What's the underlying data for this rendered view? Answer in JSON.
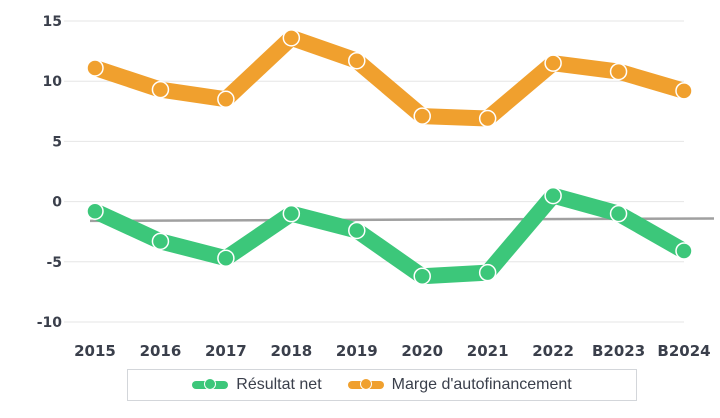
{
  "chart_data": {
    "type": "line",
    "title": "",
    "xlabel": "",
    "ylabel": "",
    "categories": [
      "2015",
      "2016",
      "2017",
      "2018",
      "2019",
      "2020",
      "2021",
      "2022",
      "B2023",
      "B2024"
    ],
    "ylim": [
      -10,
      15
    ],
    "yticks": [
      "15",
      "10",
      "5",
      "0",
      "-5",
      "-10"
    ],
    "ytick_values": [
      15,
      10,
      5,
      0,
      -5,
      -10
    ],
    "grid": true,
    "legend_position": "bottom",
    "series": [
      {
        "name": "Résultat net",
        "color": "#3cc77a",
        "values": [
          -0.8,
          -3.3,
          -4.7,
          -1.0,
          -2.4,
          -6.2,
          -5.9,
          0.5,
          -1.0,
          -4.1
        ]
      },
      {
        "name": "Marge d'autofinancement",
        "color": "#f0a02e",
        "values": [
          11.1,
          9.3,
          8.5,
          13.6,
          11.7,
          7.1,
          6.9,
          11.5,
          10.8,
          9.2
        ]
      }
    ],
    "reference_line_color": "#a0a0a0"
  }
}
